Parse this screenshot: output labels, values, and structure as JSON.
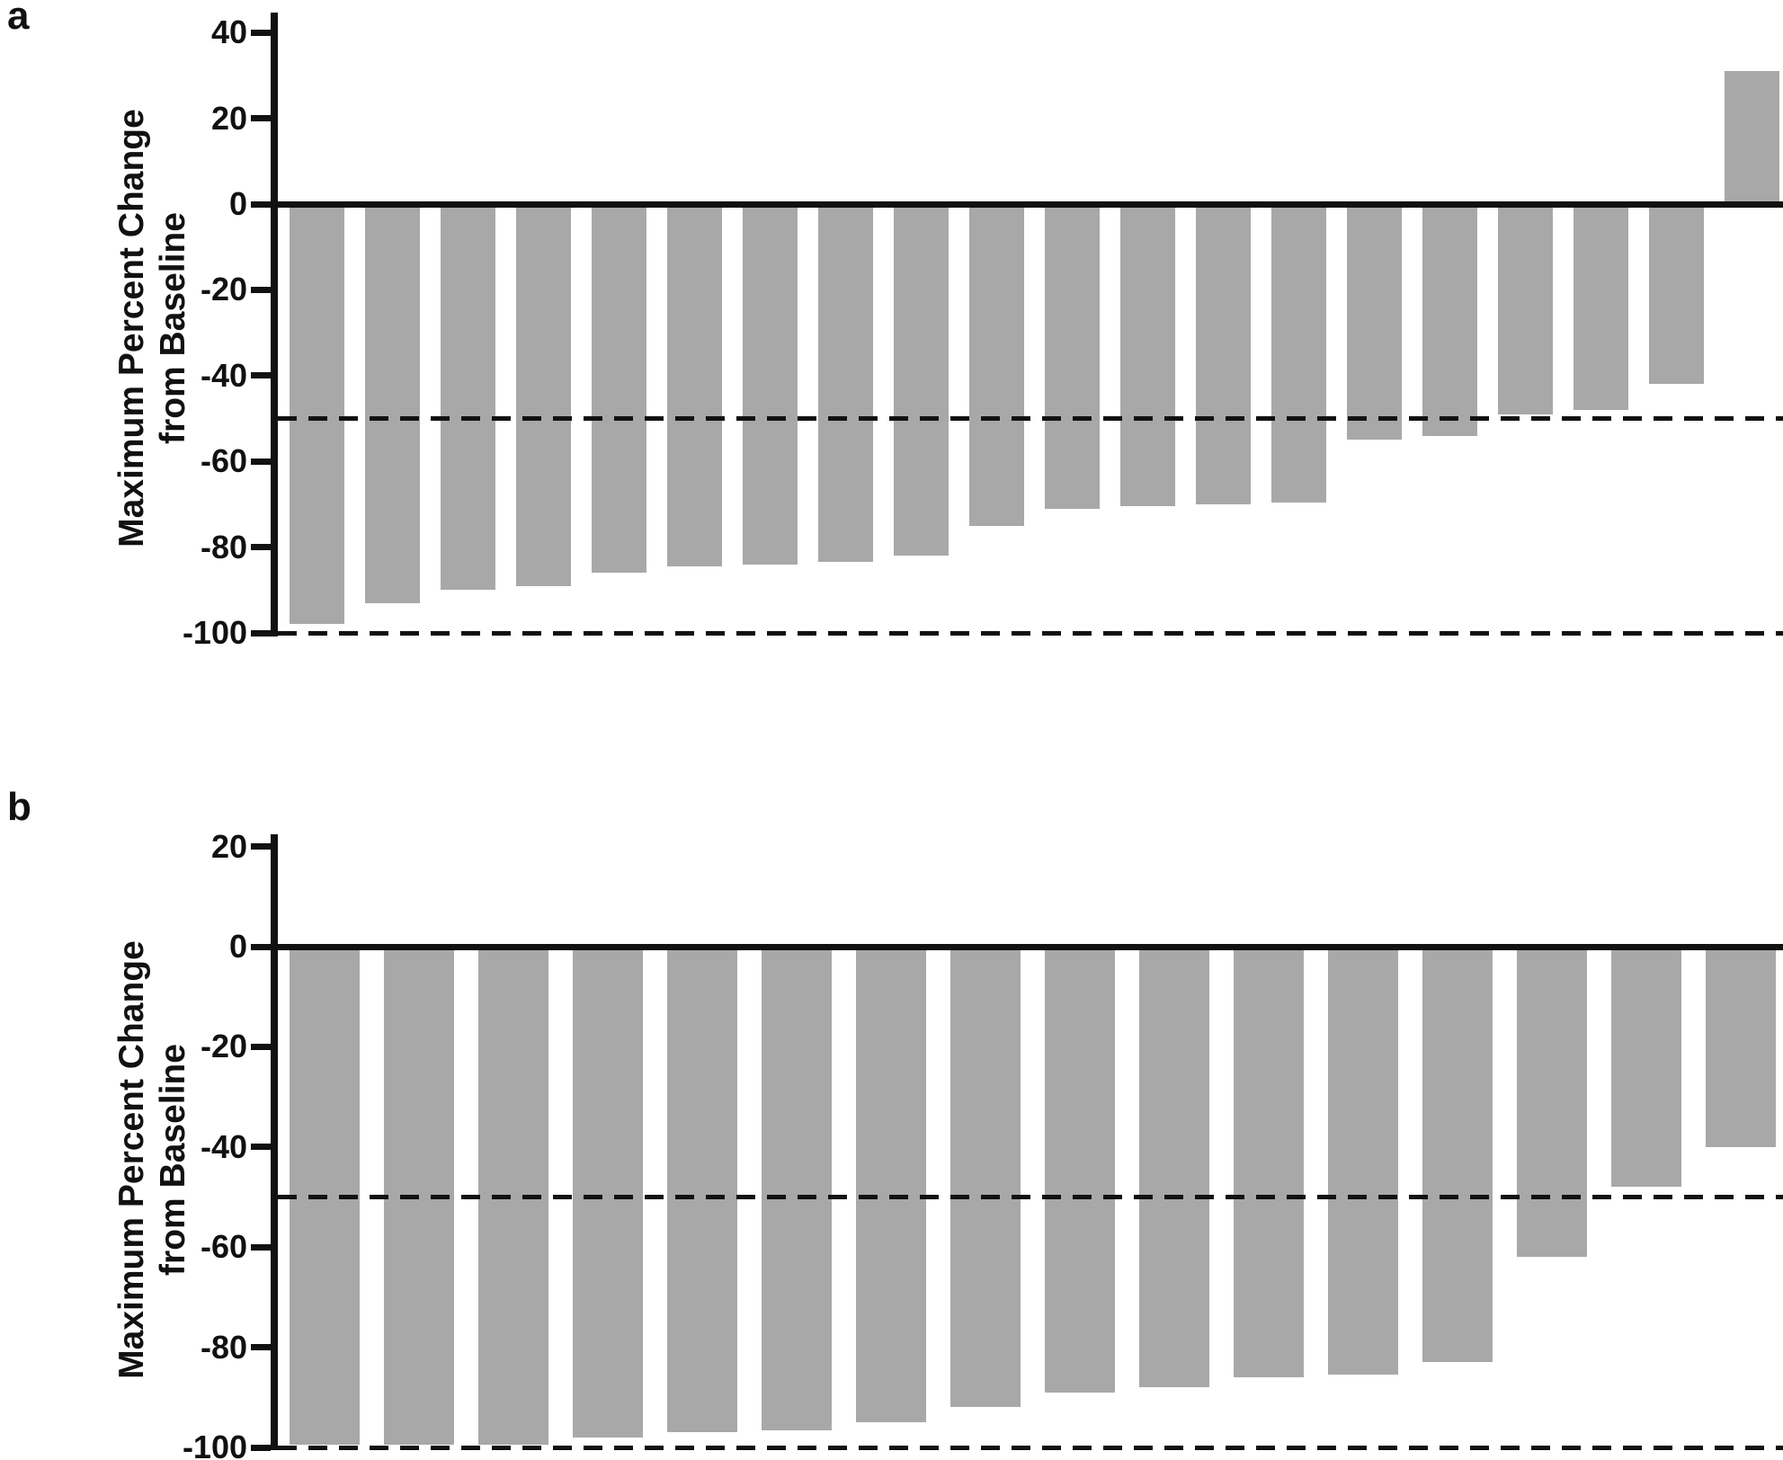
{
  "page": {
    "background": "#ffffff",
    "panels": [
      {
        "label": "a"
      },
      {
        "label": "b"
      }
    ]
  },
  "chart_data": [
    {
      "type": "bar",
      "panel_label": "a",
      "title": "",
      "xlabel": "",
      "ylabel": "Maximum Percent Change from Baseline",
      "ylabel_lines": [
        "Maximum Percent Change",
        "from Baseline"
      ],
      "yticks": [
        40,
        20,
        0,
        -20,
        -40,
        -60,
        -80,
        -100
      ],
      "ylim": [
        -100,
        40
      ],
      "grid": false,
      "legend": "none",
      "reference_lines_dashed": [
        -50,
        -100
      ],
      "bar_color": "#a8a8a8",
      "axis_color": "#111111",
      "values": [
        -98,
        -93,
        -90,
        -89,
        -86,
        -84.5,
        -84,
        -83.5,
        -82,
        -75,
        -71,
        -70.5,
        -70,
        -69.5,
        -55,
        -54,
        -49,
        -48,
        -42,
        31
      ]
    },
    {
      "type": "bar",
      "panel_label": "b",
      "title": "",
      "xlabel": "",
      "ylabel": "Maximum Percent Change from Baseline",
      "ylabel_lines": [
        "Maximum Percent Change",
        "from Baseline"
      ],
      "yticks": [
        20,
        0,
        -20,
        -40,
        -60,
        -80,
        -100
      ],
      "ylim": [
        -100,
        20
      ],
      "grid": false,
      "legend": "none",
      "reference_lines_dashed": [
        -50,
        -100
      ],
      "bar_color": "#a8a8a8",
      "axis_color": "#111111",
      "values": [
        -99.5,
        -99.5,
        -99.5,
        -98,
        -97,
        -96.5,
        -95,
        -92,
        -89,
        -88,
        -86,
        -85.5,
        -83,
        -62,
        -48,
        -40
      ]
    }
  ]
}
